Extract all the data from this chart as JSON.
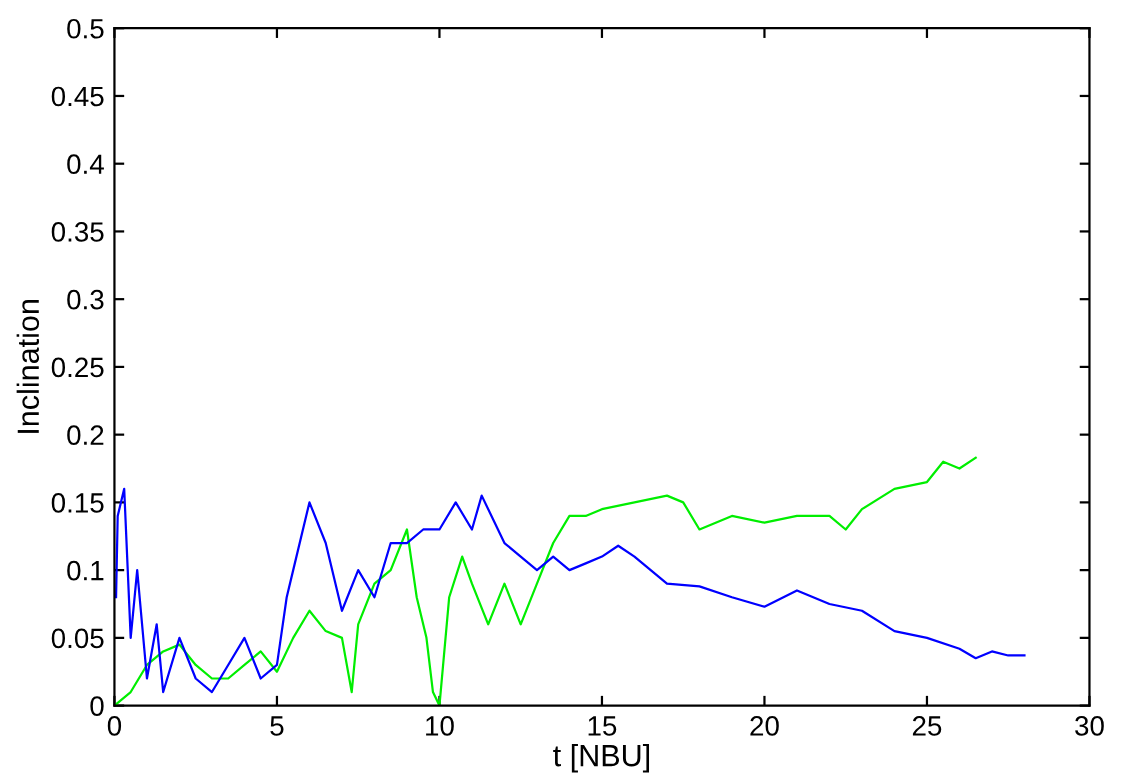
{
  "chart_data": {
    "type": "line",
    "xlabel": "t [NBU]",
    "ylabel": "Inclination",
    "xlim": [
      0,
      30
    ],
    "ylim": [
      0,
      0.5
    ],
    "xticks": [
      0,
      5,
      10,
      15,
      20,
      25,
      30
    ],
    "yticks": [
      0,
      0.05,
      0.1,
      0.15,
      0.2,
      0.25,
      0.3,
      0.35,
      0.4,
      0.45,
      0.5
    ],
    "grid": false,
    "marker": "none",
    "line_style": "solid",
    "series": [
      {
        "color": "#00ee00",
        "x": [
          0,
          0.5,
          1,
          1.5,
          2,
          2.5,
          3,
          3.5,
          4,
          4.5,
          5,
          5.5,
          6,
          6.5,
          7,
          7.3,
          7.5,
          8,
          8.5,
          9,
          9.3,
          9.6,
          9.8,
          10,
          10.3,
          10.7,
          11,
          11.5,
          12,
          12.5,
          13,
          13.5,
          14,
          14.5,
          15,
          16,
          17,
          17.5,
          18,
          19,
          20,
          21,
          22,
          22.5,
          23,
          24,
          25,
          25.5,
          26,
          26.5
        ],
        "values": [
          0,
          0.01,
          0.03,
          0.04,
          0.045,
          0.03,
          0.02,
          0.02,
          0.03,
          0.04,
          0.025,
          0.05,
          0.07,
          0.055,
          0.05,
          0.01,
          0.06,
          0.09,
          0.1,
          0.13,
          0.08,
          0.05,
          0.01,
          0,
          0.08,
          0.11,
          0.09,
          0.06,
          0.09,
          0.06,
          0.09,
          0.12,
          0.14,
          0.14,
          0.145,
          0.15,
          0.155,
          0.15,
          0.13,
          0.14,
          0.135,
          0.14,
          0.14,
          0.13,
          0.145,
          0.16,
          0.165,
          0.18,
          0.175,
          0.183
        ]
      },
      {
        "color": "#0000ff",
        "x": [
          0.05,
          0.1,
          0.3,
          0.5,
          0.7,
          1,
          1.3,
          1.5,
          2,
          2.5,
          3,
          3.5,
          4,
          4.5,
          5,
          5.3,
          5.5,
          6,
          6.5,
          7,
          7.5,
          8,
          8.5,
          9,
          9.5,
          10,
          10.5,
          11,
          11.3,
          12,
          12.5,
          13,
          13.5,
          14,
          14.5,
          15,
          15.5,
          16,
          17,
          18,
          19,
          20,
          21,
          22,
          23,
          24,
          25,
          26,
          26.5,
          27,
          27.5,
          28
        ],
        "values": [
          0.08,
          0.14,
          0.16,
          0.05,
          0.1,
          0.02,
          0.06,
          0.01,
          0.05,
          0.02,
          0.01,
          0.03,
          0.05,
          0.02,
          0.03,
          0.08,
          0.1,
          0.15,
          0.12,
          0.07,
          0.1,
          0.08,
          0.12,
          0.12,
          0.13,
          0.13,
          0.15,
          0.13,
          0.155,
          0.12,
          0.11,
          0.1,
          0.11,
          0.1,
          0.105,
          0.11,
          0.118,
          0.11,
          0.09,
          0.088,
          0.08,
          0.073,
          0.085,
          0.075,
          0.07,
          0.055,
          0.05,
          0.042,
          0.035,
          0.04,
          0.037,
          0.037
        ]
      }
    ]
  }
}
